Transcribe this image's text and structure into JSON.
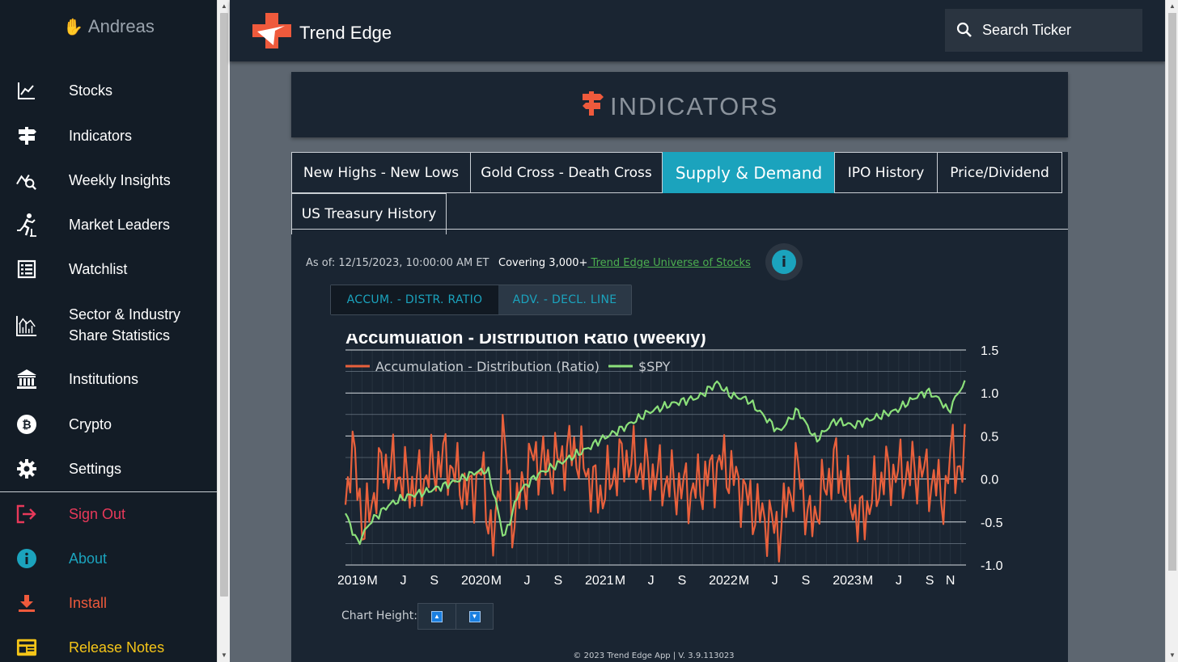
{
  "sidebar": {
    "user": "Andreas",
    "items": [
      {
        "label": "Stocks",
        "icon": "chart-line-icon",
        "color": "#ffffff"
      },
      {
        "label": "Indicators",
        "icon": "signpost-icon",
        "color": "#ffffff"
      },
      {
        "label": "Weekly Insights",
        "icon": "chart-search-icon",
        "color": "#ffffff"
      },
      {
        "label": "Market Leaders",
        "icon": "runner-icon",
        "color": "#ffffff"
      },
      {
        "label": "Watchlist",
        "icon": "list-icon",
        "color": "#ffffff"
      },
      {
        "label": "Sector & Industry",
        "label2": "Share Statistics",
        "icon": "bar-stats-icon",
        "color": "#ffffff"
      },
      {
        "label": "Institutions",
        "icon": "bank-icon",
        "color": "#ffffff"
      },
      {
        "label": "Crypto",
        "icon": "bitcoin-icon",
        "color": "#ffffff"
      },
      {
        "label": "Settings",
        "icon": "gear-icon",
        "color": "#ffffff"
      },
      {
        "label": "Sign Out",
        "icon": "sign-out-icon",
        "color": "#e8395a"
      },
      {
        "label": "About",
        "icon": "info-icon",
        "color": "#1ba3bd"
      },
      {
        "label": "Install",
        "icon": "download-icon",
        "color": "#ef5a3c"
      },
      {
        "label": "Release Notes",
        "icon": "newspaper-icon",
        "color": "#f5c518"
      }
    ]
  },
  "header": {
    "brand": "Trend Edge",
    "search_label": "Search Ticker"
  },
  "page": {
    "title": "INDICATORS",
    "tabs": [
      "New Highs - New Lows",
      "Gold Cross - Death Cross",
      "Supply & Demand",
      "IPO History",
      "Price/Dividend",
      "US Treasury History"
    ],
    "active_tab": "Supply & Demand",
    "as_of": "As of: 12/15/2023, 10:00:00 AM ET",
    "covering": "Covering 3,000+",
    "covering_link": " Trend Edge Universe of Stocks",
    "subtabs": [
      "ACCUM. - DISTR. RATIO",
      "ADV. - DECL. LINE"
    ],
    "chart_height_label": "Chart Height:",
    "footer": "© 2023 Trend Edge App | V. 3.9.113023"
  },
  "colors": {
    "accent": "#1ba3bd",
    "brand_red": "#ef5a3c",
    "ratio_line": "#e8603c",
    "spy_line": "#8be07a"
  },
  "chart_data": {
    "type": "line",
    "title": "Accumulation - Distribution Ratio (Weekly)",
    "x_tick_labels": [
      "2019",
      "M",
      "J",
      "S",
      "2020",
      "M",
      "J",
      "S",
      "2021",
      "M",
      "J",
      "S",
      "2022",
      "M",
      "J",
      "S",
      "2023",
      "M",
      "J",
      "S",
      "N"
    ],
    "x_range": [
      "2018-12",
      "2023-12"
    ],
    "y_ticks": [
      "1.5",
      "1.0",
      "0.5",
      "0.0",
      "-0.5",
      "-1.0"
    ],
    "ylim": [
      -1.0,
      1.5
    ],
    "legend_position": "top-left",
    "series": [
      {
        "name": "Accumulation - Distribution (Ratio)",
        "color": "#e8603c",
        "anchors": [
          [
            2018.95,
            -0.3
          ],
          [
            2019.0,
            0.4
          ],
          [
            2019.1,
            -0.6
          ],
          [
            2019.25,
            0.2
          ],
          [
            2019.5,
            -0.1
          ],
          [
            2019.75,
            0.25
          ],
          [
            2019.95,
            -0.2
          ],
          [
            2020.05,
            0.1
          ],
          [
            2020.15,
            -0.85
          ],
          [
            2020.22,
            0.6
          ],
          [
            2020.3,
            -0.5
          ],
          [
            2020.45,
            0.25
          ],
          [
            2020.6,
            0.15
          ],
          [
            2020.8,
            0.35
          ],
          [
            2021.0,
            -0.2
          ],
          [
            2021.2,
            0.25
          ],
          [
            2021.5,
            0.0
          ],
          [
            2021.75,
            -0.15
          ],
          [
            2022.0,
            0.2
          ],
          [
            2022.25,
            -0.35
          ],
          [
            2022.45,
            -0.6
          ],
          [
            2022.6,
            0.15
          ],
          [
            2022.7,
            -0.55
          ],
          [
            2022.9,
            0.2
          ],
          [
            2023.1,
            -0.5
          ],
          [
            2023.3,
            0.05
          ],
          [
            2023.6,
            0.1
          ],
          [
            2023.8,
            -0.2
          ],
          [
            2023.85,
            0.45
          ],
          [
            2023.92,
            -0.1
          ],
          [
            2023.96,
            0.5
          ]
        ]
      },
      {
        "name": "$SPY",
        "color": "#8be07a",
        "anchors": [
          [
            2018.95,
            -0.4
          ],
          [
            2019.05,
            -0.75
          ],
          [
            2019.15,
            -0.5
          ],
          [
            2019.3,
            -0.3
          ],
          [
            2019.45,
            -0.2
          ],
          [
            2019.6,
            -0.15
          ],
          [
            2019.8,
            -0.05
          ],
          [
            2020.0,
            0.08
          ],
          [
            2020.1,
            0.1
          ],
          [
            2020.17,
            -0.3
          ],
          [
            2020.23,
            -0.7
          ],
          [
            2020.35,
            -0.15
          ],
          [
            2020.5,
            0.05
          ],
          [
            2020.7,
            0.2
          ],
          [
            2020.9,
            0.35
          ],
          [
            2021.0,
            0.45
          ],
          [
            2021.2,
            0.6
          ],
          [
            2021.4,
            0.78
          ],
          [
            2021.6,
            0.88
          ],
          [
            2021.8,
            0.95
          ],
          [
            2021.95,
            1.12
          ],
          [
            2022.05,
            0.98
          ],
          [
            2022.2,
            0.92
          ],
          [
            2022.35,
            0.7
          ],
          [
            2022.45,
            0.55
          ],
          [
            2022.6,
            0.8
          ],
          [
            2022.75,
            0.45
          ],
          [
            2022.9,
            0.68
          ],
          [
            2023.05,
            0.62
          ],
          [
            2023.2,
            0.7
          ],
          [
            2023.4,
            0.8
          ],
          [
            2023.55,
            0.95
          ],
          [
            2023.65,
            1.02
          ],
          [
            2023.75,
            0.92
          ],
          [
            2023.82,
            0.78
          ],
          [
            2023.9,
            1.02
          ],
          [
            2023.96,
            1.12
          ]
        ]
      }
    ]
  }
}
